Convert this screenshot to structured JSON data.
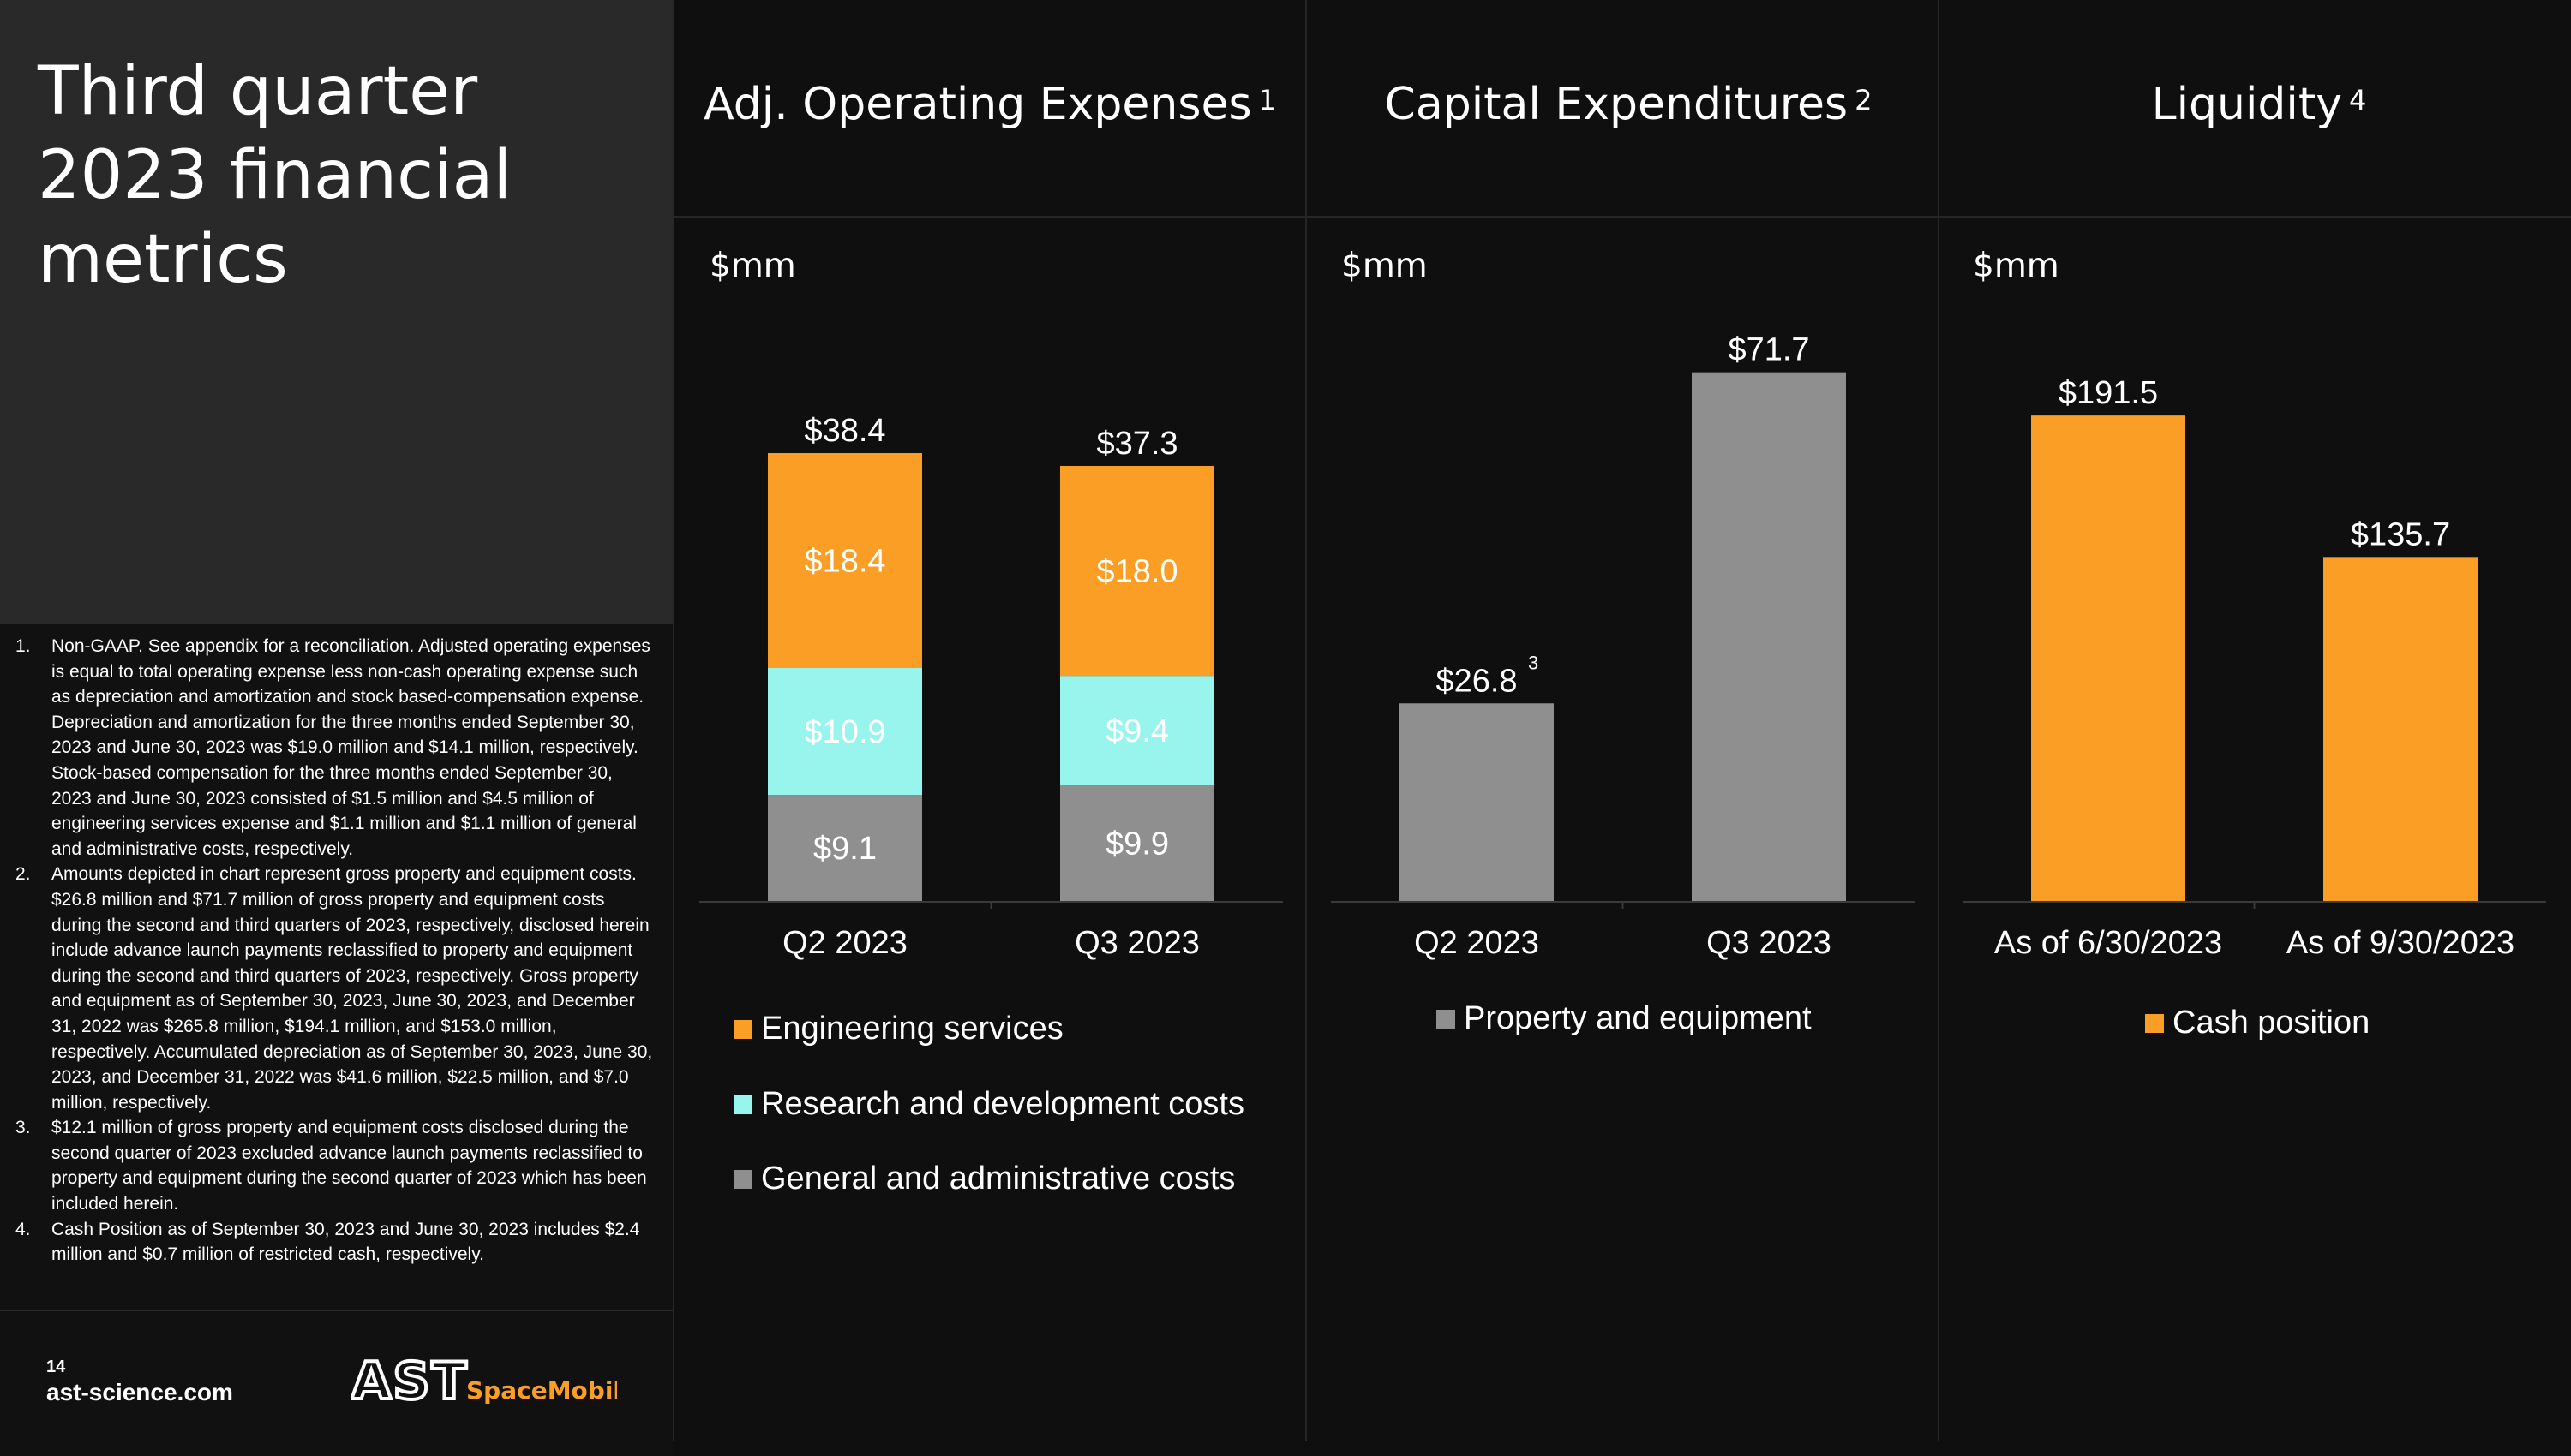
{
  "slide": {
    "title": "Third quarter 2023 financial metrics",
    "page_number": "14",
    "website": "ast-science.com",
    "logo_text_main": "AST",
    "logo_text_sub": "SpaceMobile",
    "footnotes": [
      {
        "num": "1.",
        "text": "Non-GAAP. See appendix for a reconciliation. Adjusted operating expenses is equal to total operating expense less non-cash operating expense such as depreciation and amortization and stock based-compensation expense. Depreciation and amortization for the three months ended September 30, 2023 and June 30, 2023 was $19.0 million and $14.1 million, respectively. Stock-based compensation for the three months ended September 30, 2023 and June 30, 2023 consisted of $1.5 million and $4.5 million of engineering services expense and $1.1 million and $1.1 million of general and administrative costs, respectively."
      },
      {
        "num": "2.",
        "text": "Amounts depicted in chart represent gross property and equipment costs. $26.8 million and $71.7 million of gross property and equipment costs during the second and third quarters of 2023, respectively, disclosed herein include advance launch payments reclassified to property and equipment during the second and third quarters of 2023, respectively. Gross property and equipment as of September 30, 2023, June 30, 2023, and December 31, 2022 was $265.8 million, $194.1 million, and $153.0 million, respectively. Accumulated depreciation as of September 30, 2023, June 30, 2023, and December 31, 2022 was $41.6 million, $22.5 million, and $7.0 million, respectively."
      },
      {
        "num": "3.",
        "text": "$12.1 million of gross property and equipment costs disclosed during the second quarter of 2023 excluded advance launch payments reclassified to property and equipment during the second quarter of 2023 which has been included herein."
      },
      {
        "num": "4.",
        "text": "Cash Position as of September 30, 2023 and June 30, 2023 includes $2.4 million and $0.7 million of restricted cash, respectively."
      }
    ]
  },
  "colors": {
    "orange": "#fb9e26",
    "cyan": "#97f5ee",
    "gray": "#8f8f8f"
  },
  "chart_data": [
    {
      "type": "bar",
      "stacked": true,
      "title": "Adj. Operating Expenses",
      "title_sup": "1",
      "unit_label": "$mm",
      "categories": [
        "Q2 2023",
        "Q3 2023"
      ],
      "series": [
        {
          "name": "General and administrative costs",
          "color": "#8f8f8f",
          "values": [
            9.1,
            9.9
          ],
          "labels": [
            "$9.1",
            "$9.9"
          ]
        },
        {
          "name": "Research and development costs",
          "color": "#97f5ee",
          "values": [
            10.9,
            9.4
          ],
          "labels": [
            "$10.9",
            "$9.4"
          ]
        },
        {
          "name": "Engineering services",
          "color": "#fb9e26",
          "values": [
            18.4,
            18.0
          ],
          "labels": [
            "$18.4",
            "$18.0"
          ]
        }
      ],
      "totals": [
        38.4,
        37.3
      ],
      "total_labels": [
        "$38.4",
        "$37.3"
      ],
      "legend_order": [
        "Engineering services",
        "Research and development costs",
        "General and administrative costs"
      ],
      "legend_position": "bottom"
    },
    {
      "type": "bar",
      "title": "Capital Expenditures",
      "title_sup": "2",
      "unit_label": "$mm",
      "categories": [
        "Q2 2023",
        "Q3 2023"
      ],
      "series": [
        {
          "name": "Property and equipment",
          "color": "#8f8f8f",
          "values": [
            26.8,
            71.7
          ],
          "labels": [
            "$26.8",
            "$71.7"
          ],
          "label_sups": [
            "3",
            ""
          ]
        }
      ],
      "legend_position": "bottom"
    },
    {
      "type": "bar",
      "title": "Liquidity",
      "title_sup": "4",
      "unit_label": "$mm",
      "categories": [
        "As of 6/30/2023",
        "As of 9/30/2023"
      ],
      "series": [
        {
          "name": "Cash position",
          "color": "#fb9e26",
          "values": [
            191.5,
            135.7
          ],
          "labels": [
            "$191.5",
            "$135.7"
          ]
        }
      ],
      "legend_position": "bottom"
    }
  ]
}
